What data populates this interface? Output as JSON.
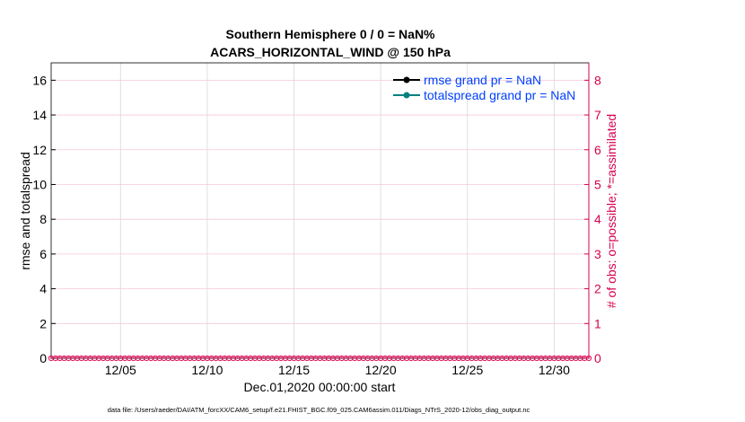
{
  "chart_data": {
    "type": "line",
    "title": [
      "Southern Hemisphere 0 / 0 = NaN%",
      "ACARS_HORIZONTAL_WIND @ 150 hPa"
    ],
    "xlabel": "Dec.01,2020 00:00:00 start",
    "ylabel": "rmse and totalspread",
    "ylabel_right": "# of obs: o=possible; *=assimilated",
    "xlim_days": [
      1,
      32
    ],
    "ylim": [
      0,
      17
    ],
    "ylim_right": [
      0,
      8.5
    ],
    "x_ticks": [
      {
        "day": 5,
        "label": "12/05"
      },
      {
        "day": 10,
        "label": "12/10"
      },
      {
        "day": 15,
        "label": "12/15"
      },
      {
        "day": 20,
        "label": "12/20"
      },
      {
        "day": 25,
        "label": "12/25"
      },
      {
        "day": 30,
        "label": "12/30"
      }
    ],
    "y_ticks": [
      0,
      2,
      4,
      6,
      8,
      10,
      12,
      14,
      16
    ],
    "y_ticks_right": [
      0,
      1,
      2,
      3,
      4,
      5,
      6,
      7,
      8
    ],
    "grid": true,
    "legend_position": "top-right",
    "series": [
      {
        "name": "rmse grand pr = NaN",
        "color": "#000000",
        "values": []
      },
      {
        "name": "totalspread grand pr = NaN",
        "color": "#008080",
        "values": []
      },
      {
        "name": "obs possible",
        "axis": "right",
        "color": "#e0105a",
        "marker": "o",
        "value_all": 0,
        "interval_hours": 6
      },
      {
        "name": "obs assimilated",
        "axis": "right",
        "color": "#e0105a",
        "marker": "*",
        "value_all": 0,
        "interval_hours": 6
      }
    ],
    "footer": "data file: /Users/raeder/DAI/ATM_forcXX/CAM6_setup/f.e21.FHIST_BGC.f09_025.CAM6assim.011/Diags_NTrS_2020-12/obs_diag_output.nc"
  },
  "colors": {
    "axis_right": "#d6004f",
    "legend_text": "#0040ff",
    "grid_v": "#d8d8d8",
    "grid_h": "#f6c8d8"
  }
}
